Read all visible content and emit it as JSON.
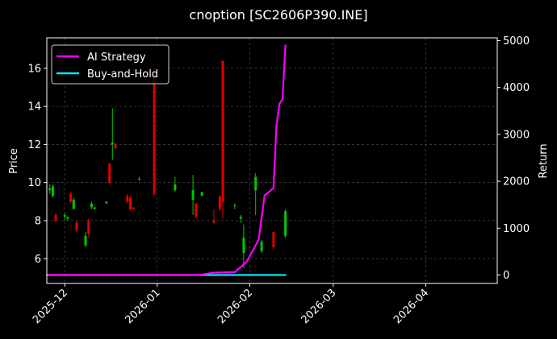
{
  "chart_data": {
    "type": "candlestick+line",
    "title": "cnoption [SC2606P390.INE]",
    "ylabel": "Price",
    "y2label": "Return",
    "x_ticks": [
      "2025-12",
      "2026-01",
      "2026-02",
      "2026-03",
      "2026-04"
    ],
    "x_tick_dates": [
      "2025-12-01",
      "2026-01-01",
      "2026-02-01",
      "2026-03-01",
      "2026-04-01"
    ],
    "xlim": [
      "2025-11-25",
      "2026-04-25"
    ],
    "y_ticks": [
      6,
      8,
      10,
      12,
      14,
      16
    ],
    "ylim": [
      4.7,
      17.6
    ],
    "y2_ticks": [
      0,
      1000,
      2000,
      3000,
      4000,
      5000
    ],
    "y2lim": [
      -180,
      5060
    ],
    "grid": true,
    "legend_position": "top-left",
    "colors": {
      "background": "#000000",
      "text": "#ffffff",
      "grid": "#555555",
      "up": "#00c800",
      "down": "#e00000",
      "strategy": "#ff00ff",
      "benchmark": "#00e5ff"
    },
    "legend": [
      {
        "label": "AI Strategy",
        "color": "#ff00ff"
      },
      {
        "label": "Buy-and-Hold",
        "color": "#00e5ff"
      }
    ],
    "candles": [
      {
        "date": "2025-11-26",
        "open": 9.6,
        "high": 9.9,
        "low": 9.4,
        "close": 9.7
      },
      {
        "date": "2025-11-27",
        "open": 9.3,
        "high": 9.9,
        "low": 9.2,
        "close": 9.8
      },
      {
        "date": "2025-11-28",
        "open": 8.3,
        "high": 8.4,
        "low": 7.9,
        "close": 8.0
      },
      {
        "date": "2025-12-01",
        "open": 8.2,
        "high": 8.4,
        "low": 8.0,
        "close": 8.3
      },
      {
        "date": "2025-12-02",
        "open": 8.1,
        "high": 8.2,
        "low": 8.0,
        "close": 8.2
      },
      {
        "date": "2025-12-03",
        "open": 9.4,
        "high": 9.5,
        "low": 8.9,
        "close": 9.0
      },
      {
        "date": "2025-12-04",
        "open": 8.6,
        "high": 9.2,
        "low": 8.6,
        "close": 9.1
      },
      {
        "date": "2025-12-05",
        "open": 7.9,
        "high": 8.0,
        "low": 7.4,
        "close": 7.5
      },
      {
        "date": "2025-12-08",
        "open": 6.7,
        "high": 7.4,
        "low": 6.6,
        "close": 7.2
      },
      {
        "date": "2025-12-09",
        "open": 8.0,
        "high": 8.1,
        "low": 7.1,
        "close": 7.3
      },
      {
        "date": "2025-12-10",
        "open": 8.7,
        "high": 9.0,
        "low": 8.6,
        "close": 8.9
      },
      {
        "date": "2025-12-11",
        "open": 8.6,
        "high": 8.7,
        "low": 8.6,
        "close": 8.7
      },
      {
        "date": "2025-12-15",
        "open": 8.9,
        "high": 9.0,
        "low": 8.9,
        "close": 9.0
      },
      {
        "date": "2025-12-16",
        "open": 11.0,
        "high": 11.0,
        "low": 9.9,
        "close": 10.0
      },
      {
        "date": "2025-12-17",
        "open": 12.0,
        "high": 13.9,
        "low": 11.2,
        "close": 12.1
      },
      {
        "date": "2025-12-18",
        "open": 12.0,
        "high": 12.1,
        "low": 11.7,
        "close": 11.8
      },
      {
        "date": "2025-12-22",
        "open": 9.3,
        "high": 9.4,
        "low": 8.9,
        "close": 9.0
      },
      {
        "date": "2025-12-23",
        "open": 9.2,
        "high": 9.3,
        "low": 8.5,
        "close": 8.6
      },
      {
        "date": "2025-12-24",
        "open": 8.7,
        "high": 8.7,
        "low": 8.6,
        "close": 8.6
      },
      {
        "date": "2025-12-26",
        "open": 10.2,
        "high": 10.3,
        "low": 10.1,
        "close": 10.2
      },
      {
        "date": "2025-12-31",
        "open": 16.0,
        "high": 16.0,
        "low": 9.3,
        "close": 9.4
      },
      {
        "date": "2026-01-07",
        "open": 9.6,
        "high": 10.3,
        "low": 9.5,
        "close": 9.9
      },
      {
        "date": "2026-01-13",
        "open": 9.1,
        "high": 10.4,
        "low": 8.3,
        "close": 9.6
      },
      {
        "date": "2026-01-14",
        "open": 8.9,
        "high": 8.9,
        "low": 8.1,
        "close": 8.2
      },
      {
        "date": "2026-01-16",
        "open": 9.3,
        "high": 9.5,
        "low": 9.3,
        "close": 9.5
      },
      {
        "date": "2026-01-20",
        "open": 8.0,
        "high": 8.6,
        "low": 7.8,
        "close": 7.9
      },
      {
        "date": "2026-01-22",
        "open": 9.3,
        "high": 9.3,
        "low": 8.5,
        "close": 8.6
      },
      {
        "date": "2026-01-23",
        "open": 16.4,
        "high": 16.4,
        "low": 8.1,
        "close": 9.0
      },
      {
        "date": "2026-01-27",
        "open": 8.8,
        "high": 8.9,
        "low": 8.6,
        "close": 8.8
      },
      {
        "date": "2026-01-29",
        "open": 8.1,
        "high": 8.3,
        "low": 7.9,
        "close": 8.2
      },
      {
        "date": "2026-01-30",
        "open": 6.3,
        "high": 7.8,
        "low": 5.5,
        "close": 7.1
      },
      {
        "date": "2026-02-03",
        "open": 9.6,
        "high": 10.5,
        "low": 8.3,
        "close": 10.3
      },
      {
        "date": "2026-02-05",
        "open": 6.4,
        "high": 7.0,
        "low": 6.3,
        "close": 6.9
      },
      {
        "date": "2026-02-09",
        "open": 7.4,
        "high": 7.4,
        "low": 6.5,
        "close": 6.6
      },
      {
        "date": "2026-02-13",
        "open": 7.2,
        "high": 8.6,
        "low": 7.1,
        "close": 8.5
      }
    ],
    "series": [
      {
        "name": "AI Strategy",
        "x": [
          "2025-11-25",
          "2026-01-15",
          "2026-01-20",
          "2026-01-27",
          "2026-01-31",
          "2026-02-04",
          "2026-02-06",
          "2026-02-09",
          "2026-02-10",
          "2026-02-11",
          "2026-02-12",
          "2026-02-13"
        ],
        "values": [
          0,
          0,
          50,
          60,
          280,
          750,
          1700,
          1850,
          3200,
          3650,
          3750,
          4900
        ]
      },
      {
        "name": "Buy-and-Hold",
        "x": [
          "2025-11-25",
          "2026-02-13"
        ],
        "values": [
          0,
          0
        ]
      }
    ]
  }
}
